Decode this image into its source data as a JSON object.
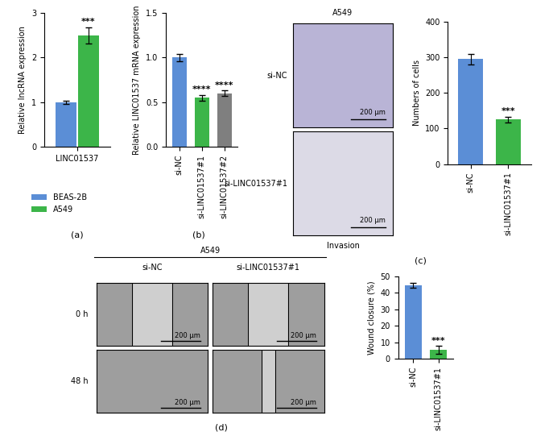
{
  "chart_data": [
    {
      "type": "grouped_bar",
      "panel": "(a)",
      "ylabel": "Relative lncRNA expression",
      "categories": [
        "LINC01537"
      ],
      "series": [
        {
          "name": "BEAS-2B",
          "color": "#5b8ed6",
          "values": [
            1.0
          ],
          "errors": [
            0.04
          ],
          "significance": [
            null
          ]
        },
        {
          "name": "A549",
          "color": "#3cb549",
          "values": [
            2.5
          ],
          "errors": [
            0.18
          ],
          "significance": [
            "***"
          ]
        }
      ],
      "ylim": [
        0,
        3
      ],
      "yticks": [
        0,
        1,
        2,
        3
      ],
      "legend": "lower left"
    },
    {
      "type": "bar",
      "panel": "(b)",
      "ylabel": "Relative LINC01537 mRNA expression",
      "categories": [
        "si-NC",
        "si-LINC01537#1",
        "si-LINC01537#2"
      ],
      "values": [
        1.0,
        0.55,
        0.6
      ],
      "errors": [
        0.04,
        0.03,
        0.03
      ],
      "significance": [
        null,
        "****",
        "****"
      ],
      "colors": [
        "#5b8ed6",
        "#3cb549",
        "#7f7f7f"
      ],
      "ylim": [
        0,
        1.5
      ],
      "yticks": [
        {
          "value": 0,
          "label": "0.0"
        },
        {
          "value": 0.5,
          "label": "0.5"
        },
        {
          "value": 1.0,
          "label": "1.0"
        },
        {
          "value": 1.5,
          "label": "1.5"
        }
      ]
    },
    {
      "type": "bar",
      "panel": "(c)",
      "ylabel": "Numbers of cells",
      "categories": [
        "si-NC",
        "si-LINC01537#1"
      ],
      "values": [
        295,
        125
      ],
      "errors": [
        15,
        8
      ],
      "significance": [
        null,
        "***"
      ],
      "colors": [
        "#5b8ed6",
        "#3cb549"
      ],
      "ylim": [
        0,
        400
      ],
      "yticks": [
        0,
        100,
        200,
        300,
        400
      ],
      "image": {
        "title": "A549",
        "rows": [
          "si-NC",
          "si-LINC01537#1"
        ],
        "scale_bar": "200 μm",
        "caption": "Invasion"
      }
    },
    {
      "type": "bar",
      "panel": "(d)",
      "ylabel": "Wound closure (%)",
      "categories": [
        "si-NC",
        "si-LINC01537#1"
      ],
      "values": [
        44.5,
        5.5
      ],
      "errors": [
        1.5,
        2.5
      ],
      "significance": [
        null,
        "***"
      ],
      "colors": [
        "#5b8ed6",
        "#3cb549"
      ],
      "ylim": [
        0,
        50
      ],
      "yticks": [
        0,
        10,
        20,
        30,
        40,
        50
      ],
      "image": {
        "title": "A549",
        "columns": [
          "si-NC",
          "si-LINC01537#1"
        ],
        "rows": [
          "0 h",
          "48 h"
        ],
        "scale_bar": "200 μm"
      }
    }
  ]
}
